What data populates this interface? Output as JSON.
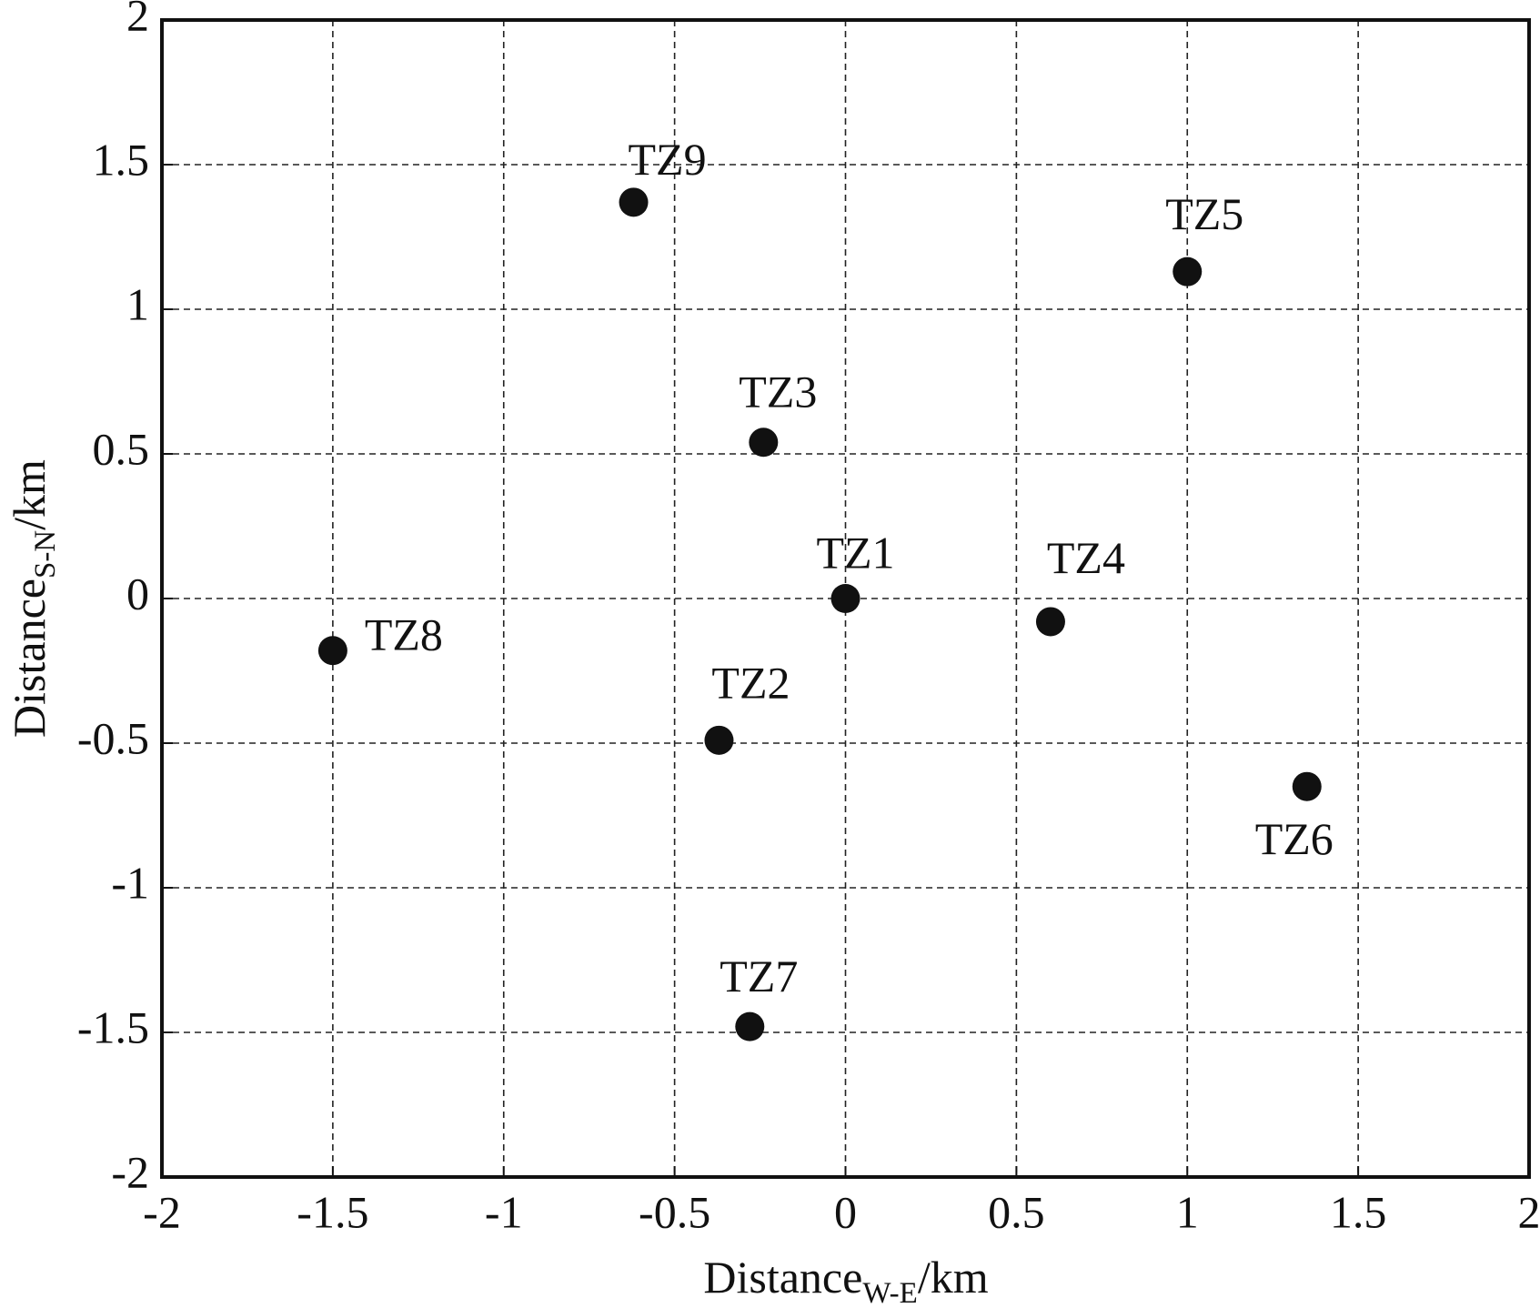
{
  "chart_data": {
    "type": "scatter",
    "labels": [
      "TZ1",
      "TZ2",
      "TZ3",
      "TZ4",
      "TZ5",
      "TZ6",
      "TZ7",
      "TZ8",
      "TZ9"
    ],
    "x": [
      0,
      -0.37,
      -0.24,
      0.6,
      1.0,
      1.35,
      -0.28,
      -1.5,
      -0.62
    ],
    "y": [
      0,
      -0.49,
      0.54,
      -0.08,
      1.13,
      -0.65,
      -1.48,
      -0.18,
      1.37
    ],
    "color": "#111111",
    "xlabel": {
      "main": "Distance",
      "sub": "W-E",
      "unit": "/km"
    },
    "ylabel": {
      "main": "Distance",
      "sub": "S-N",
      "unit": "/km"
    },
    "xlim": [
      -2,
      2
    ],
    "ylim": [
      -2,
      2
    ],
    "xticks": [
      -2,
      -1.5,
      -1,
      -0.5,
      0,
      0.5,
      1,
      1.5,
      2
    ],
    "yticks": [
      -2,
      -1.5,
      -1,
      -0.5,
      0,
      0.5,
      1,
      1.5,
      2
    ],
    "grid": true
  }
}
